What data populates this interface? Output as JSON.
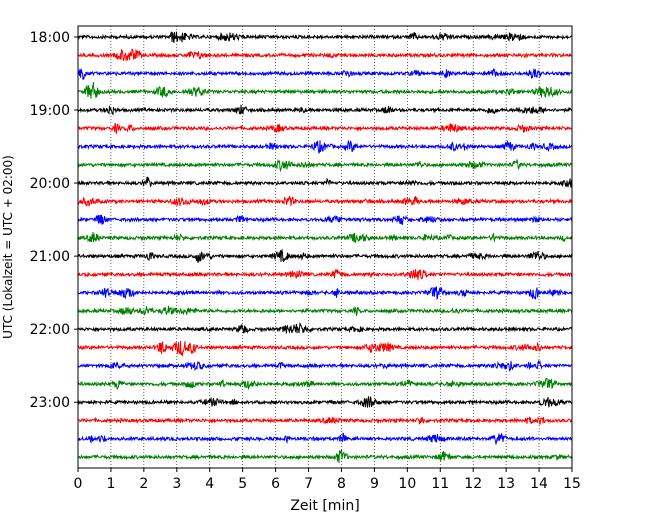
{
  "chart_data": {
    "type": "line",
    "title": "",
    "xlabel": "Zeit  [min]",
    "ylabel": "UTC (Lokalzeit = UTC + 02:00)",
    "xlim": [
      0,
      15
    ],
    "x_ticks": [
      "0",
      "1",
      "2",
      "3",
      "4",
      "5",
      "6",
      "7",
      "8",
      "9",
      "10",
      "11",
      "12",
      "13",
      "14",
      "15"
    ],
    "y_tick_labels": [
      "18:00",
      "19:00",
      "20:00",
      "21:00",
      "22:00",
      "23:00"
    ],
    "y_ticks_hours": [
      18,
      19,
      20,
      21,
      22,
      23
    ],
    "ylim_hours": [
      17.85,
      23.9
    ],
    "grid": "vertical dotted",
    "trace_colors": [
      "#000000",
      "#ff0000",
      "#0000ff",
      "#008000"
    ],
    "traces_start": "18:00",
    "trace_interval_min": 15,
    "trace_count": 24
  }
}
